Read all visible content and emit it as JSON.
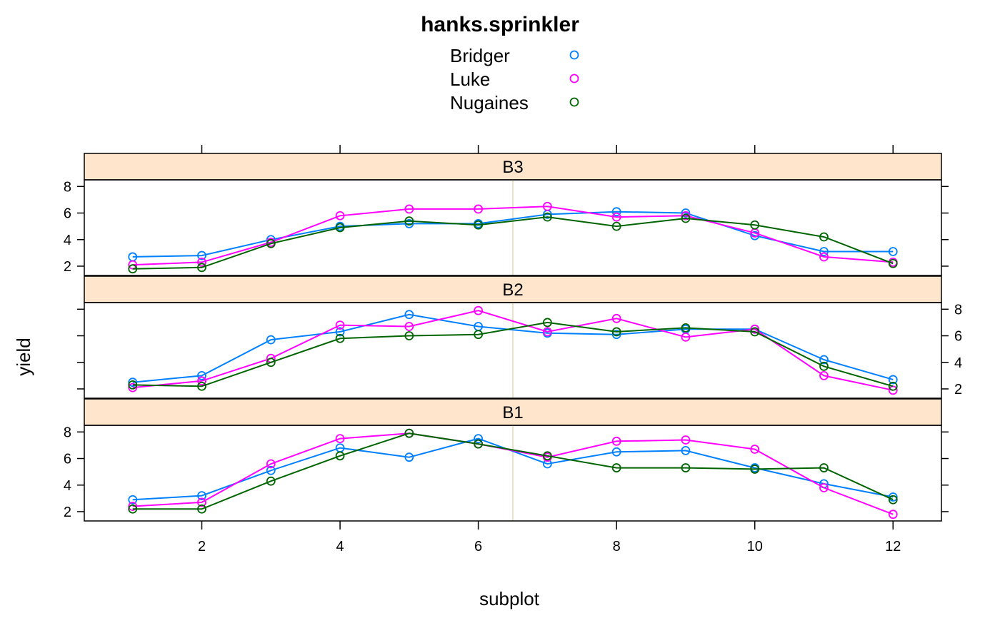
{
  "chart_data": {
    "type": "line",
    "title": "hanks.sprinkler",
    "xlabel": "subplot",
    "ylabel": "yield",
    "x": [
      1,
      2,
      3,
      4,
      5,
      6,
      7,
      8,
      9,
      10,
      11,
      12
    ],
    "xlim": [
      0.3,
      12.7
    ],
    "ylim": [
      1.3,
      8.5
    ],
    "xticks": [
      2,
      4,
      6,
      8,
      10,
      12
    ],
    "yticks": [
      2,
      4,
      6,
      8
    ],
    "reference_line_x": 6.5,
    "colors": {
      "Bridger": "#0080ff",
      "Luke": "#ff00ff",
      "Nugaines": "#006400",
      "strip": "#ffe5cc",
      "reference_line": "#e8d8b0"
    },
    "legend": {
      "position": "top-center",
      "entries": [
        "Bridger",
        "Luke",
        "Nugaines"
      ]
    },
    "panels": [
      {
        "name": "B3",
        "series": [
          {
            "name": "Bridger",
            "values": [
              2.7,
              2.8,
              4.0,
              5.0,
              5.2,
              5.2,
              5.9,
              6.1,
              6.0,
              4.3,
              3.1,
              3.1
            ]
          },
          {
            "name": "Luke",
            "values": [
              2.1,
              2.3,
              3.8,
              5.8,
              6.3,
              6.3,
              6.5,
              5.7,
              5.8,
              4.5,
              2.7,
              2.3
            ]
          },
          {
            "name": "Nugaines",
            "values": [
              1.8,
              1.9,
              3.7,
              4.9,
              5.4,
              5.1,
              5.7,
              5.0,
              5.6,
              5.1,
              4.2,
              2.2
            ]
          }
        ]
      },
      {
        "name": "B2",
        "series": [
          {
            "name": "Bridger",
            "values": [
              2.5,
              3.0,
              5.7,
              6.3,
              7.6,
              6.7,
              6.2,
              6.1,
              6.5,
              6.5,
              4.2,
              2.7
            ]
          },
          {
            "name": "Luke",
            "values": [
              2.1,
              2.6,
              4.3,
              6.8,
              6.7,
              7.9,
              6.3,
              7.3,
              5.9,
              6.5,
              3.0,
              1.9
            ]
          },
          {
            "name": "Nugaines",
            "values": [
              2.3,
              2.2,
              4.0,
              5.8,
              6.0,
              6.1,
              7.0,
              6.3,
              6.6,
              6.3,
              3.7,
              2.2
            ]
          }
        ]
      },
      {
        "name": "B1",
        "series": [
          {
            "name": "Bridger",
            "values": [
              2.9,
              3.2,
              5.1,
              6.8,
              6.1,
              7.5,
              5.6,
              6.5,
              6.6,
              5.3,
              4.1,
              3.1
            ]
          },
          {
            "name": "Luke",
            "values": [
              2.4,
              2.7,
              5.6,
              7.5,
              7.9,
              7.1,
              6.1,
              7.3,
              7.4,
              6.7,
              3.8,
              1.8
            ]
          },
          {
            "name": "Nugaines",
            "values": [
              2.2,
              2.2,
              4.3,
              6.2,
              7.9,
              7.1,
              6.2,
              5.3,
              5.3,
              5.2,
              5.3,
              2.9
            ]
          }
        ]
      }
    ]
  }
}
